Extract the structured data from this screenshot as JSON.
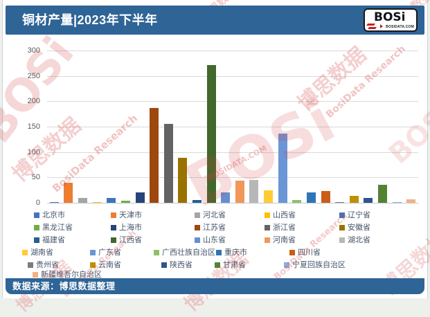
{
  "header": {
    "title": "铜材产量|2023年下半年"
  },
  "logo": {
    "name": "BOSi",
    "site": "BOSIDATA.COM"
  },
  "footer": {
    "source": "数据来源：博思数据整理"
  },
  "watermark": {
    "items": [
      "博思数据",
      "BosiData Research",
      "BOSi",
      "BOSIDATA.COM"
    ]
  },
  "chart_data": {
    "type": "bar",
    "title": "铜材产量|2023年下半年",
    "xlabel": "",
    "ylabel": "",
    "ylim": [
      0,
      300
    ],
    "yticks": [
      0,
      50,
      100,
      150,
      200,
      250,
      300
    ],
    "grid": true,
    "legend_position": "bottom",
    "series": [
      {
        "name": "北京市",
        "value": 1,
        "color": "#4472c4"
      },
      {
        "name": "天津市",
        "value": 39,
        "color": "#ed7d31"
      },
      {
        "name": "河北省",
        "value": 10,
        "color": "#a5a5a5"
      },
      {
        "name": "山西省",
        "value": 1,
        "color": "#ffc000"
      },
      {
        "name": "辽宁省",
        "value": 9,
        "color": "#3f76bd"
      },
      {
        "name": "黑龙江省",
        "value": 4,
        "color": "#70ad47"
      },
      {
        "name": "上海市",
        "value": 21,
        "color": "#264478"
      },
      {
        "name": "江苏省",
        "value": 187,
        "color": "#9e480e"
      },
      {
        "name": "浙江省",
        "value": 155,
        "color": "#636363"
      },
      {
        "name": "安徽省",
        "value": 89,
        "color": "#997300"
      },
      {
        "name": "福建省",
        "value": 6,
        "color": "#255e91"
      },
      {
        "name": "江西省",
        "value": 272,
        "color": "#43682b"
      },
      {
        "name": "山东省",
        "value": 21,
        "color": "#698ed0"
      },
      {
        "name": "河南省",
        "value": 43,
        "color": "#f1975a"
      },
      {
        "name": "湖北省",
        "value": 45,
        "color": "#b7b7b7"
      },
      {
        "name": "湖南省",
        "value": 25,
        "color": "#ffcd33"
      },
      {
        "name": "广东省",
        "value": 137,
        "color": "#6b96d6"
      },
      {
        "name": "广西壮族自治区",
        "value": 6,
        "color": "#8cc168"
      },
      {
        "name": "重庆市",
        "value": 21,
        "color": "#2e75b6"
      },
      {
        "name": "四川省",
        "value": 23,
        "color": "#cb5d16"
      },
      {
        "name": "贵州省",
        "value": 1,
        "color": "#7c7c7c"
      },
      {
        "name": "云南省",
        "value": 13,
        "color": "#bf9000"
      },
      {
        "name": "陕西省",
        "value": 9,
        "color": "#31538f"
      },
      {
        "name": "甘肃省",
        "value": 35,
        "color": "#548235"
      },
      {
        "name": "宁夏回族自治区",
        "value": 1,
        "color": "#8faadc"
      },
      {
        "name": "新疆维吾尔自治区",
        "value": 7,
        "color": "#f4b183"
      }
    ]
  }
}
